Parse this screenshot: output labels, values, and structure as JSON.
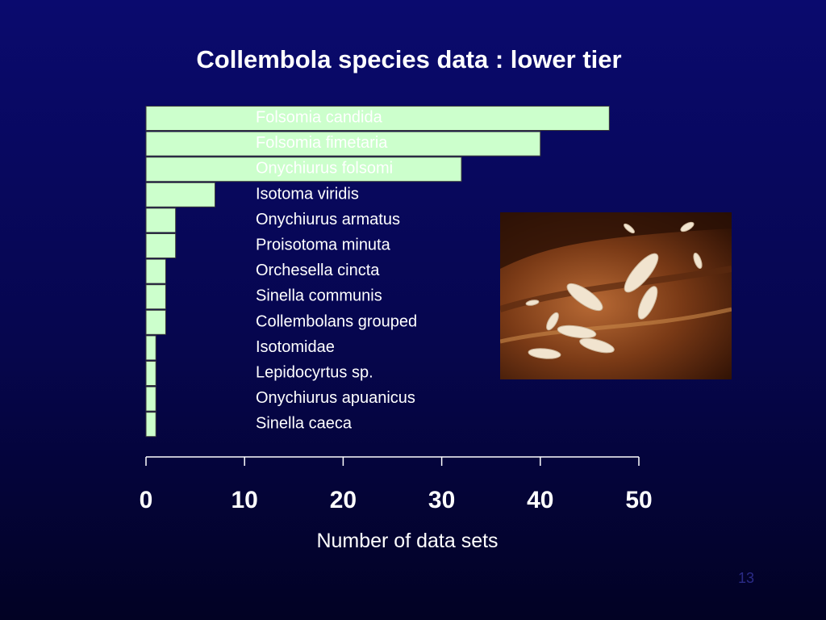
{
  "slide": {
    "title": "Collembola species data : lower tier",
    "x_axis_label": "Number of data sets",
    "slide_number": "13",
    "photo": "collembola-springtails-photo"
  },
  "colors": {
    "background": "#06064e",
    "bar_fill": "#ccffcc",
    "bar_stroke": "#3a3a3a",
    "text": "#ffffff"
  },
  "chart_data": {
    "type": "bar",
    "orientation": "horizontal",
    "title": "Collembola species data : lower tier",
    "xlabel": "Number of data sets",
    "ylabel": "",
    "xlim": [
      0,
      50
    ],
    "xticks": [
      0,
      10,
      20,
      30,
      40,
      50
    ],
    "grid": false,
    "categories": [
      "Folsomia candida",
      "Folsomia fimetaria",
      "Onychiurus folsomi",
      "Isotoma viridis",
      "Onychiurus armatus",
      "Proisotoma minuta",
      "Orchesella cincta",
      "Sinella communis",
      "Collembolans grouped",
      "Isotomidae",
      "Lepidocyrtus sp.",
      "Onychiurus apuanicus",
      "Sinella caeca"
    ],
    "values": [
      47,
      40,
      32,
      7,
      3,
      3,
      2,
      2,
      2,
      1,
      1,
      1,
      1
    ]
  }
}
